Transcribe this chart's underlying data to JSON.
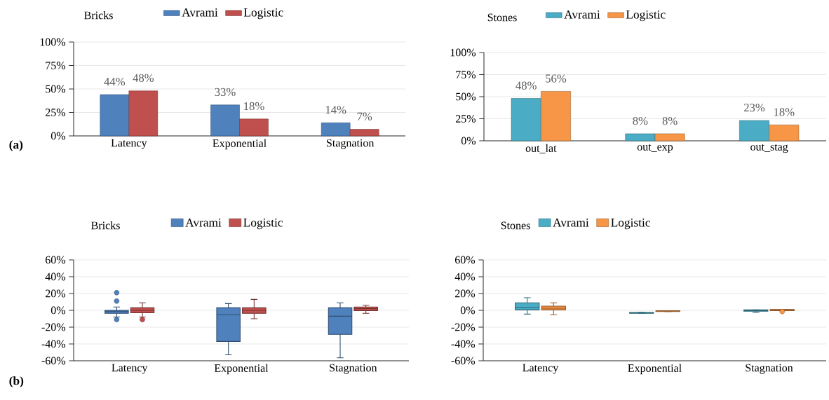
{
  "chart_data": [
    {
      "type": "bar",
      "title": "Bricks",
      "categories": [
        "Latency",
        "Exponential",
        "Stagnation"
      ],
      "series": [
        {
          "name": "Avrami",
          "color": "#4f81bd",
          "values": [
            44,
            33,
            14
          ],
          "value_labels": [
            "44%",
            "33%",
            "14%"
          ]
        },
        {
          "name": "Logistic",
          "color": "#c0504d",
          "values": [
            48,
            18,
            7
          ],
          "value_labels": [
            "48%",
            "18%",
            "7%"
          ]
        }
      ],
      "ylim": [
        0,
        100
      ],
      "yticks": [
        {
          "value": 0,
          "label": "0%"
        },
        {
          "value": 25,
          "label": "25%"
        },
        {
          "value": 50,
          "label": "50%"
        },
        {
          "value": 75,
          "label": "75%"
        },
        {
          "value": 100,
          "label": "100%"
        }
      ],
      "grid": "y",
      "legend": "top",
      "annotations": [
        "(a)"
      ]
    },
    {
      "type": "bar",
      "title": "Stones",
      "categories": [
        "out_lat",
        "out_exp",
        "out_stag"
      ],
      "series": [
        {
          "name": "Avrami",
          "color": "#4bacc6",
          "values": [
            48,
            8,
            23
          ],
          "value_labels": [
            "48%",
            "8%",
            "23%"
          ]
        },
        {
          "name": "Logistic",
          "color": "#f79646",
          "values": [
            56,
            8,
            18
          ],
          "value_labels": [
            "56%",
            "8%",
            "18%"
          ]
        }
      ],
      "ylim": [
        0,
        100
      ],
      "yticks": [
        {
          "value": 0,
          "label": "0%"
        },
        {
          "value": 25,
          "label": "25%"
        },
        {
          "value": 50,
          "label": "50%"
        },
        {
          "value": 75,
          "label": "75%"
        },
        {
          "value": 100,
          "label": "100%"
        }
      ],
      "grid": "y",
      "legend": "top"
    },
    {
      "type": "box",
      "title": "Bricks",
      "categories": [
        "Latency",
        "Exponential",
        "Stagnation"
      ],
      "series": [
        {
          "name": "Avrami",
          "color": "#4f81bd",
          "boxes": [
            {
              "low": -8,
              "q1": -3.5,
              "median": -1.5,
              "q3": 0,
              "high": 4,
              "outliers": [
                21,
                11,
                -11
              ]
            },
            {
              "low": -53,
              "q1": -37,
              "median": -5.5,
              "q3": 3,
              "high": 8
            },
            {
              "low": -56.5,
              "q1": -28.5,
              "median": -7,
              "q3": 3,
              "high": 9
            }
          ]
        },
        {
          "name": "Logistic",
          "color": "#c0504d",
          "boxes": [
            {
              "low": -8,
              "q1": -3,
              "median": 0,
              "q3": 3,
              "high": 9,
              "outliers": [
                -11
              ]
            },
            {
              "low": -10,
              "q1": -3.5,
              "median": 0,
              "q3": 3,
              "high": 13
            },
            {
              "low": -3.5,
              "q1": -0.5,
              "median": 2,
              "q3": 4,
              "high": 6
            }
          ]
        }
      ],
      "ylim": [
        -60,
        60
      ],
      "yticks": [
        {
          "value": -60,
          "label": "-60%"
        },
        {
          "value": -40,
          "label": "-40%"
        },
        {
          "value": -20,
          "label": "-20%"
        },
        {
          "value": 0,
          "label": "0%"
        },
        {
          "value": 20,
          "label": "20%"
        },
        {
          "value": 40,
          "label": "40%"
        },
        {
          "value": 60,
          "label": "60%"
        }
      ],
      "grid": "y",
      "legend": "top",
      "annotations": [
        "(b)"
      ]
    },
    {
      "type": "box",
      "title": "Stones",
      "categories": [
        "Latency",
        "Exponential",
        "Stagnation"
      ],
      "series": [
        {
          "name": "Avrami",
          "color": "#4bacc6",
          "boxes": [
            {
              "low": -4.5,
              "q1": 0.5,
              "median": 3.5,
              "q3": 9,
              "high": 15
            },
            {
              "low": -3.5,
              "q1": -3.5,
              "median": -3,
              "q3": -2.5,
              "high": -2.5
            },
            {
              "low": -2.5,
              "q1": -1,
              "median": -0.5,
              "q3": 0.5,
              "high": 0.5
            }
          ]
        },
        {
          "name": "Logistic",
          "color": "#f79646",
          "boxes": [
            {
              "low": -5.5,
              "q1": 0.5,
              "median": 2.5,
              "q3": 5,
              "high": 9
            },
            {
              "low": -1.5,
              "q1": -1.5,
              "median": -1,
              "q3": -0.5,
              "high": -0.5
            },
            {
              "low": -0.5,
              "q1": -0.5,
              "median": 0.5,
              "q3": 1,
              "high": 1,
              "outliers": [
                -1.5
              ]
            }
          ]
        }
      ],
      "ylim": [
        -60,
        60
      ],
      "yticks": [
        {
          "value": -60,
          "label": "-60%"
        },
        {
          "value": -40,
          "label": "-40%"
        },
        {
          "value": -20,
          "label": "-20%"
        },
        {
          "value": 0,
          "label": "0%"
        },
        {
          "value": 20,
          "label": "20%"
        },
        {
          "value": 40,
          "label": "40%"
        },
        {
          "value": 60,
          "label": "60%"
        }
      ],
      "grid": "y",
      "legend": "top"
    }
  ]
}
